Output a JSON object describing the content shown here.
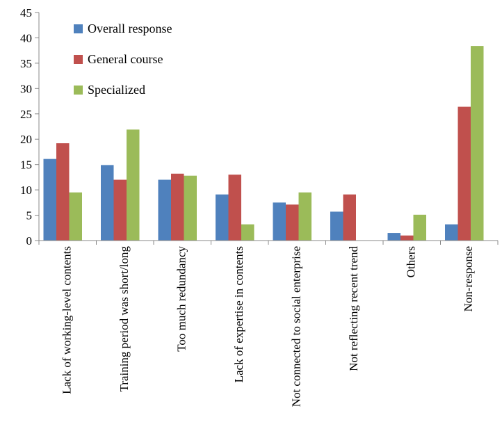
{
  "chart_data": {
    "type": "bar",
    "title": "",
    "xlabel": "",
    "ylabel": "",
    "ylim": [
      0,
      45
    ],
    "yticks": [
      0,
      5,
      10,
      15,
      20,
      25,
      30,
      35,
      40,
      45
    ],
    "grid": false,
    "legend_position": "top-left",
    "categories": [
      "Lack of working-level contents",
      "Training period was short/long",
      "Too much redundancy",
      "Lack of expertise in contents",
      "Not connected to social enterprise",
      "Not reflecting recent trend",
      "Others",
      "Non-response"
    ],
    "series": [
      {
        "name": "Overall response",
        "color": "#4F81BD",
        "values": [
          16.1,
          14.9,
          12.0,
          9.1,
          7.5,
          5.7,
          1.5,
          3.2
        ]
      },
      {
        "name": "General course",
        "color": "#C0504D",
        "values": [
          19.2,
          12.0,
          13.2,
          13.0,
          7.1,
          9.1,
          1.0,
          26.4
        ]
      },
      {
        "name": "Specialized",
        "color": "#9BBB59",
        "values": [
          9.5,
          21.9,
          12.8,
          3.2,
          9.5,
          null,
          5.1,
          38.4
        ]
      }
    ]
  }
}
